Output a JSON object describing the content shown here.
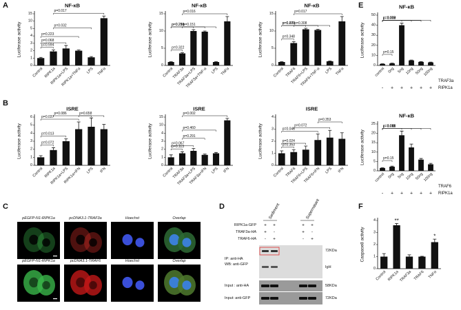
{
  "panels": [
    "A",
    "B",
    "C",
    "D",
    "E",
    "F"
  ],
  "chart_data": [
    {
      "type": "bar",
      "title": "NF-κB",
      "ylabel": "Luciferase activity",
      "color": "#111111",
      "broken_axis": true,
      "categories": [
        "Control",
        "RIPK1a",
        "RIPK1a+LPS",
        "RIPK1a+TNFα",
        "LPS",
        "TNFα"
      ],
      "values": [
        1,
        1.9,
        2.3,
        2,
        1.1,
        12
      ],
      "errors": [
        0.1,
        0.2,
        0.4,
        0.1,
        0.1,
        1.5
      ],
      "ylim": [
        0,
        15
      ],
      "yticks": [
        0,
        1,
        2,
        3,
        4,
        5,
        10,
        15
      ],
      "brackets": [
        {
          "text": "p=0.594",
          "from": "Control",
          "to": "RIPK1a"
        },
        {
          "text": "p=0.068",
          "from": "Control",
          "to": "RIPK1a+LPS"
        },
        {
          "text": "p=0.223",
          "from": "Control",
          "to": "RIPK1a+TNFα"
        },
        {
          "text": "p=0.032",
          "from": "RIPK1a",
          "to": "LPS"
        },
        {
          "text": "p=0.017",
          "from": "RIPK1a",
          "to": "TNFα"
        }
      ]
    },
    {
      "type": "bar",
      "title": "NF-κB",
      "ylabel": "Luciferase activity",
      "color": "#111111",
      "categories": [
        "Control",
        "TRAF3a",
        "TRAF3a+LPS",
        "TRAF3a+TNF-α",
        "LPS",
        "TNFα"
      ],
      "values": [
        1,
        3.5,
        10,
        9.8,
        1,
        12.8
      ],
      "errors": [
        0.1,
        0.2,
        0.4,
        0.2,
        0.1,
        1.4
      ],
      "ylim": [
        0,
        15
      ],
      "yticks": [
        0,
        5,
        10,
        15
      ],
      "brackets": [
        {
          "text": "p=0.322",
          "from": "Control",
          "to": "TRAF3a"
        },
        {
          "text": "p=0.286",
          "from": "Control",
          "to": "TRAF3a+LPS"
        },
        {
          "text": "p=0.210",
          "from": "Control",
          "to": "TRAF3a+TNF-α"
        },
        {
          "text": "p=0.151",
          "from": "TRAF3a",
          "to": "LPS"
        },
        {
          "text": "p=0.016",
          "from": "TRAF3a",
          "to": "TNFα"
        }
      ]
    },
    {
      "type": "bar",
      "title": "NF-κB",
      "ylabel": "Luciferase activity",
      "color": "#111111",
      "categories": [
        "Control",
        "TRAF6",
        "TRAF6+LPS",
        "TRAF6+TNF-α",
        "LPS",
        "TNFα"
      ],
      "values": [
        1,
        6.5,
        10.5,
        10.3,
        1.2,
        12.8
      ],
      "errors": [
        0.1,
        0.4,
        0.3,
        0.2,
        0.1,
        1.4
      ],
      "ylim": [
        0,
        15
      ],
      "yticks": [
        0,
        5,
        10,
        15
      ],
      "brackets": [
        {
          "text": "p=0.348",
          "from": "Control",
          "to": "TRAF6"
        },
        {
          "text": "p=0.272",
          "from": "Control",
          "to": "TRAF6+LPS"
        },
        {
          "text": "p=0.695",
          "from": "Control",
          "to": "TRAF6+TNF-α"
        },
        {
          "text": "p=0.308",
          "from": "TRAF6",
          "to": "LPS"
        },
        {
          "text": "p=0.017",
          "from": "TRAF6",
          "to": "TNFα"
        }
      ]
    },
    {
      "type": "bar",
      "title": "ISRE",
      "ylabel": "Luciferase activity",
      "color": "#111111",
      "categories": [
        "Control",
        "RIPK1a",
        "RIPK1a+LPS",
        "RIPK1a+IFN",
        "LPS",
        "IFN"
      ],
      "values": [
        1,
        1.9,
        3,
        4.5,
        4.8,
        4.5
      ],
      "errors": [
        0.2,
        0.3,
        0.3,
        0.9,
        1.1,
        0.6
      ],
      "ylim": [
        0,
        6
      ],
      "yticks": [
        0,
        1,
        2,
        3,
        4,
        5,
        6
      ],
      "brackets": [
        {
          "text": "p=0.072",
          "from": "Control",
          "to": "RIPK1a"
        },
        {
          "text": "p=0.013",
          "from": "Control",
          "to": "RIPK1a+LPS"
        },
        {
          "text": "p=0.037",
          "from": "Control",
          "to": "RIPK1a+IFN"
        },
        {
          "text": "p=0.086",
          "from": "RIPK1a",
          "to": "LPS"
        },
        {
          "text": "p=0.658",
          "from": "RIPK1a+IFN",
          "to": "IFN"
        }
      ]
    },
    {
      "type": "bar",
      "title": "ISRE",
      "ylabel": "Luciferase activity",
      "color": "#111111",
      "broken_axis": true,
      "categories": [
        "Control",
        "TRAF3a",
        "TRAF3a+LPS",
        "TRAF3a+IFN",
        "LPS",
        "IFN"
      ],
      "values": [
        1,
        1.5,
        1.8,
        1.3,
        1.5,
        13
      ],
      "errors": [
        0.3,
        0.2,
        0.3,
        0.1,
        0.1,
        1.2
      ],
      "ylim": [
        0,
        15
      ],
      "yticks": [
        0,
        1,
        2,
        3,
        4,
        10,
        15
      ],
      "brackets": [
        {
          "text": "p=0.113",
          "from": "Control",
          "to": "TRAF3a"
        },
        {
          "text": "p=0.067",
          "from": "Control",
          "to": "TRAF3a+LPS"
        },
        {
          "text": "p=0.291",
          "from": "TRAF3a",
          "to": "TRAF3a+IFN"
        },
        {
          "text": "p=0.460",
          "from": "TRAF3a",
          "to": "LPS"
        },
        {
          "text": "p=0.002",
          "from": "TRAF3a",
          "to": "IFN"
        }
      ]
    },
    {
      "type": "bar",
      "title": "ISRE",
      "ylabel": "Luciferase activity",
      "color": "#111111",
      "categories": [
        "Control",
        "TRAF6",
        "TRAF6+LPS",
        "TRAF6+IFN",
        "LPS",
        "IFN"
      ],
      "values": [
        1,
        1.1,
        1.3,
        2.1,
        2.3,
        2.2
      ],
      "errors": [
        0.2,
        0.2,
        0.3,
        0.5,
        0.6,
        0.5
      ],
      "ylim": [
        0,
        4
      ],
      "yticks": [
        0,
        1,
        2,
        3,
        4
      ],
      "brackets": [
        {
          "text": "p=0.353",
          "from": "Control",
          "to": "TRAF6"
        },
        {
          "text": "p=0.024",
          "from": "Control",
          "to": "TRAF6+LPS"
        },
        {
          "text": "p=0.046",
          "from": "Control",
          "to": "TRAF6+IFN"
        },
        {
          "text": "p=0.072",
          "from": "TRAF6",
          "to": "LPS"
        },
        {
          "text": "p=0.353",
          "from": "TRAF6+IFN",
          "to": "IFN"
        }
      ]
    },
    {
      "type": "bar",
      "title": "NF-κB",
      "ylabel": "Luciferase activity",
      "color": "#111111",
      "categories": [
        "control",
        "0ng",
        "5ng",
        "10ng",
        "50ng",
        "100ng"
      ],
      "values": [
        1.5,
        2,
        40,
        5,
        3.5,
        3
      ],
      "errors": [
        0.3,
        0.3,
        2,
        0.4,
        0.3,
        0.3
      ],
      "ylim": [
        0,
        50
      ],
      "yticks": [
        0,
        10,
        20,
        30,
        40,
        50
      ],
      "dose_label": "TRAF3a",
      "rows": [
        {
          "name": "RIPK1a",
          "signs": [
            "-",
            "+",
            "+",
            "+",
            "+",
            "+"
          ]
        }
      ],
      "brackets": [
        {
          "text": "p=0.15",
          "from": "control",
          "to": "0ng"
        },
        {
          "text": "p=0.003",
          "from": "control",
          "to": "5ng"
        },
        {
          "text": "p=0.009",
          "from": "control",
          "to": "10ng"
        },
        {
          "text": "p=0.002",
          "from": "control",
          "to": "50ng"
        },
        {
          "text": "p=0.002",
          "from": "control",
          "to": "100ng"
        }
      ]
    },
    {
      "type": "bar",
      "title": "NF-κB",
      "ylabel": "Luciferase activity",
      "color": "#111111",
      "categories": [
        "control",
        "0ng",
        "5ng",
        "10ng",
        "50ng",
        "100ng"
      ],
      "values": [
        1.5,
        2.2,
        19,
        12.5,
        6,
        3.5
      ],
      "errors": [
        0.2,
        0.3,
        2.2,
        1.8,
        0.6,
        0.5
      ],
      "ylim": [
        0,
        25
      ],
      "yticks": [
        0,
        5,
        10,
        15,
        20,
        25
      ],
      "dose_label": "TRAF6",
      "rows": [
        {
          "name": "RIPK1a",
          "signs": [
            "-",
            "+",
            "+",
            "+",
            "+",
            "+"
          ]
        }
      ],
      "brackets": [
        {
          "text": "p=0.15",
          "from": "control",
          "to": "0ng"
        },
        {
          "text": "p=0.015",
          "from": "control",
          "to": "5ng"
        },
        {
          "text": "p=0.071",
          "from": "control",
          "to": "10ng"
        },
        {
          "text": "p=0.068",
          "from": "control",
          "to": "50ng"
        },
        {
          "text": "p=0.011",
          "from": "control",
          "to": "100ng"
        }
      ]
    },
    {
      "type": "bar",
      "ylabel": "Caspase8 activity",
      "color": "#111111",
      "categories": [
        "Control",
        "RIPK1a",
        "TRAF3a",
        "TRAF6",
        "TNFα"
      ],
      "values": [
        1,
        3.6,
        1,
        1,
        2.2
      ],
      "errors": [
        0.25,
        0.15,
        0.15,
        0.03,
        0.25
      ],
      "ylim": [
        0,
        4
      ],
      "yticks": [
        0,
        1,
        2,
        3,
        4
      ],
      "annotations": [
        {
          "text": "**",
          "category": "RIPK1a"
        },
        {
          "text": "*",
          "category": "TNFα"
        }
      ]
    }
  ],
  "microscopy": {
    "rows": [
      [
        "pEGFP-N1-RIPK1a",
        "pcDNA3.1-TRAF3a",
        "Hoechst",
        "Overlap"
      ],
      [
        "pEGFP-N1-RIPK1a",
        "pcDNA3.1-TRAF6",
        "Hoechst",
        "Overlap"
      ]
    ]
  },
  "blot": {
    "groups": [
      "Sediment",
      "Supernatant"
    ],
    "rows": [
      {
        "name": "RIPK1a-GFP",
        "signs": [
          "+",
          "+",
          "+",
          "+"
        ]
      },
      {
        "name": "TRAF3a-HA",
        "signs": [
          "+",
          "-",
          "+",
          "-"
        ]
      },
      {
        "name": "TRAF6-HA",
        "signs": [
          "-",
          "+",
          "-",
          "+"
        ]
      }
    ],
    "panels": [
      {
        "labels": [
          "IP: anti-HA",
          "WB: anti-GFP"
        ],
        "markers": [
          "72KDa",
          "IgH"
        ]
      },
      {
        "labels": [
          "Input : anti-HA"
        ],
        "markers": [
          "58KDa"
        ]
      },
      {
        "labels": [
          "Input: anti-GFP"
        ],
        "markers": [
          "72KDa"
        ]
      }
    ]
  }
}
